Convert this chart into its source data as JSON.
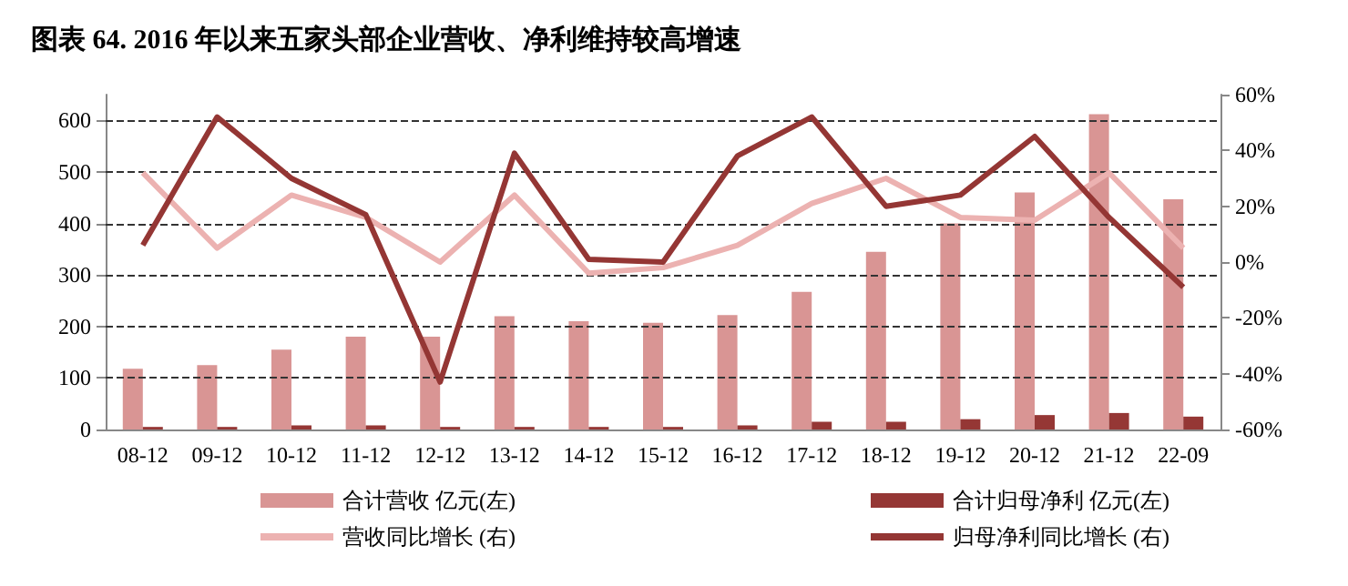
{
  "chart_data": {
    "type": "bar",
    "title": "图表 64. 2016 年以来五家头部企业营收、净利维持较高增速",
    "categories": [
      "08-12",
      "09-12",
      "10-12",
      "11-12",
      "12-12",
      "13-12",
      "14-12",
      "15-12",
      "16-12",
      "17-12",
      "18-12",
      "19-12",
      "20-12",
      "21-12",
      "22-09"
    ],
    "series": [
      {
        "name": "合计营收 亿元(左)",
        "color": "#d99594",
        "values": [
          118,
          125,
          155,
          180,
          180,
          220,
          210,
          207,
          222,
          267,
          345,
          400,
          460,
          612,
          447
        ]
      },
      {
        "name": "合计归母净利 亿元(左)",
        "color": "#953735",
        "values": [
          5,
          5,
          8,
          8,
          5,
          5,
          5,
          5,
          8,
          15,
          15,
          20,
          28,
          32,
          25
        ]
      },
      {
        "name": "营收同比增长 (右)",
        "type": "line",
        "axis": "y2",
        "color": "#ecb2b1",
        "values": [
          32,
          5,
          24,
          16,
          0,
          24,
          -4,
          -2,
          6,
          21,
          30,
          16,
          15,
          32,
          5
        ]
      },
      {
        "name": "归母净利同比增长 (右)",
        "type": "line",
        "axis": "y2",
        "color": "#943634",
        "values": [
          6,
          52,
          30,
          17,
          -43,
          39,
          1,
          0,
          38,
          52,
          20,
          24,
          45,
          16,
          -9
        ]
      }
    ],
    "ylim": [
      0,
      650
    ],
    "yticks": [
      0,
      100,
      200,
      300,
      400,
      500,
      600
    ],
    "y2lim": [
      -60,
      60
    ],
    "y2ticks": [
      {
        "value": -60,
        "label": "-60%"
      },
      {
        "value": -40,
        "label": "-40%"
      },
      {
        "value": -20,
        "label": "-20%"
      },
      {
        "value": 0,
        "label": "0%"
      },
      {
        "value": 20,
        "label": "20%"
      },
      {
        "value": 40,
        "label": "40%"
      },
      {
        "value": 60,
        "label": "60%"
      }
    ],
    "grid": "y",
    "legend": "bottom",
    "marker": "none",
    "line_style": "solid"
  }
}
